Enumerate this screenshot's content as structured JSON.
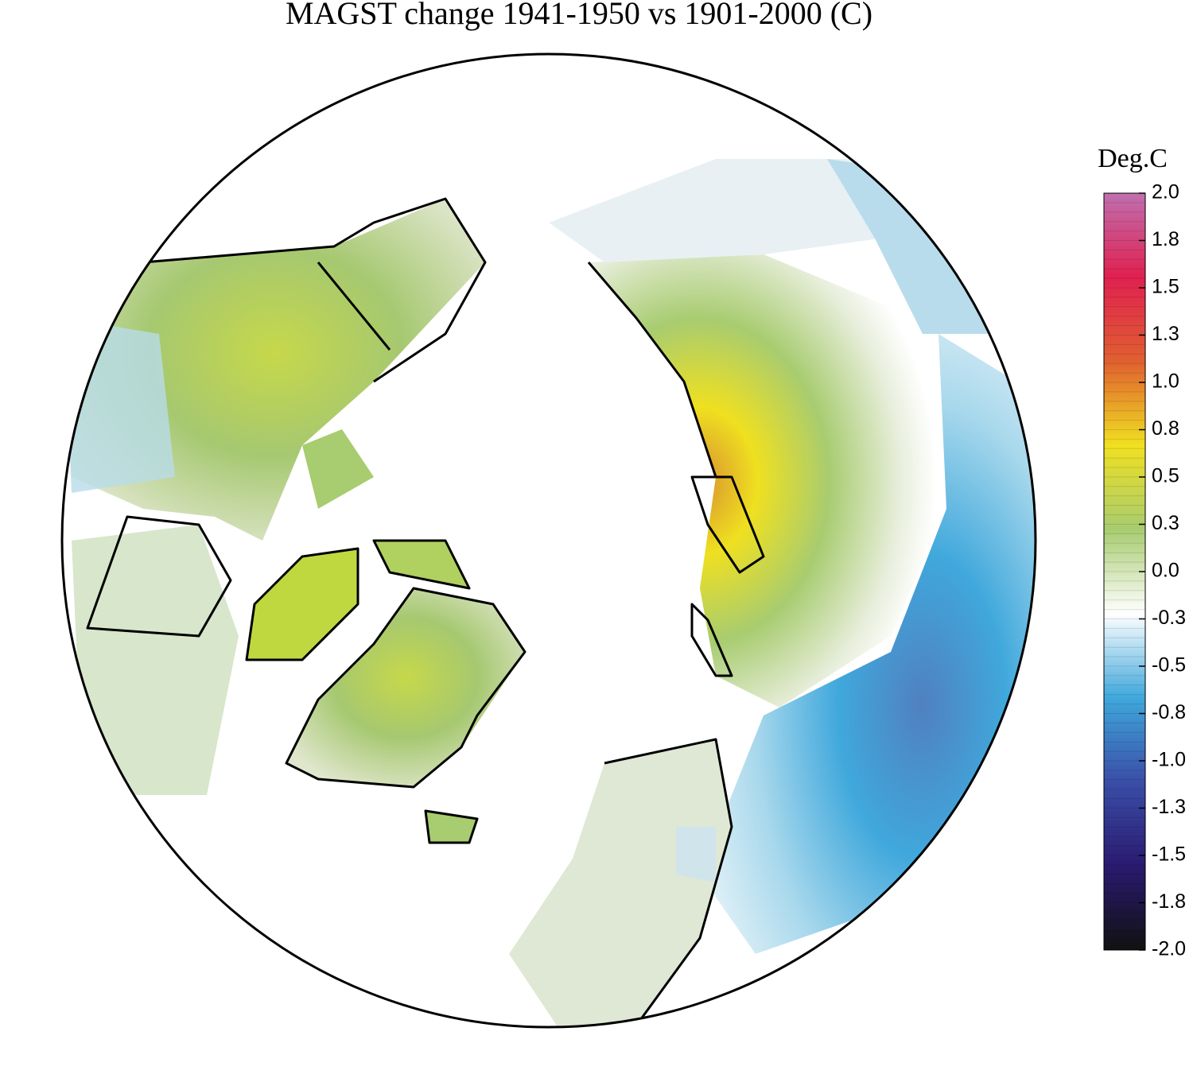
{
  "title": "MAGST change 1941-1950 vs 1901-2000 (C)",
  "colorbar": {
    "label": "Deg.C",
    "range": [
      -2,
      2
    ],
    "colors": [
      "#111111",
      "#2a1a70",
      "#3a4ea8",
      "#3fa8dc",
      "#ffffff",
      "#a8cc70",
      "#f0e020",
      "#e06030",
      "#e02050",
      "#c070b0"
    ],
    "ticks": [
      {
        "value": 2,
        "label": "2.0"
      },
      {
        "value": 1.75,
        "label": "1.8"
      },
      1.5,
      {
        "value": 1.25,
        "label": "1.3"
      },
      {
        "value": 1,
        "label": "1.0"
      },
      {
        "value": 0.75,
        "label": "0.8"
      },
      0.5,
      {
        "value": 0.25,
        "label": "0.3"
      },
      {
        "value": 0,
        "label": "0.0"
      },
      {
        "value": -0.25,
        "label": "-0.3"
      },
      -0.5,
      {
        "value": -0.75,
        "label": "-0.8"
      },
      {
        "value": -1,
        "label": "-1.0"
      },
      {
        "value": -1.25,
        "label": "-1.3"
      },
      -1.5,
      {
        "value": -1.75,
        "label": "-1.8"
      },
      {
        "value": -2,
        "label": "-2.0"
      }
    ]
  }
}
